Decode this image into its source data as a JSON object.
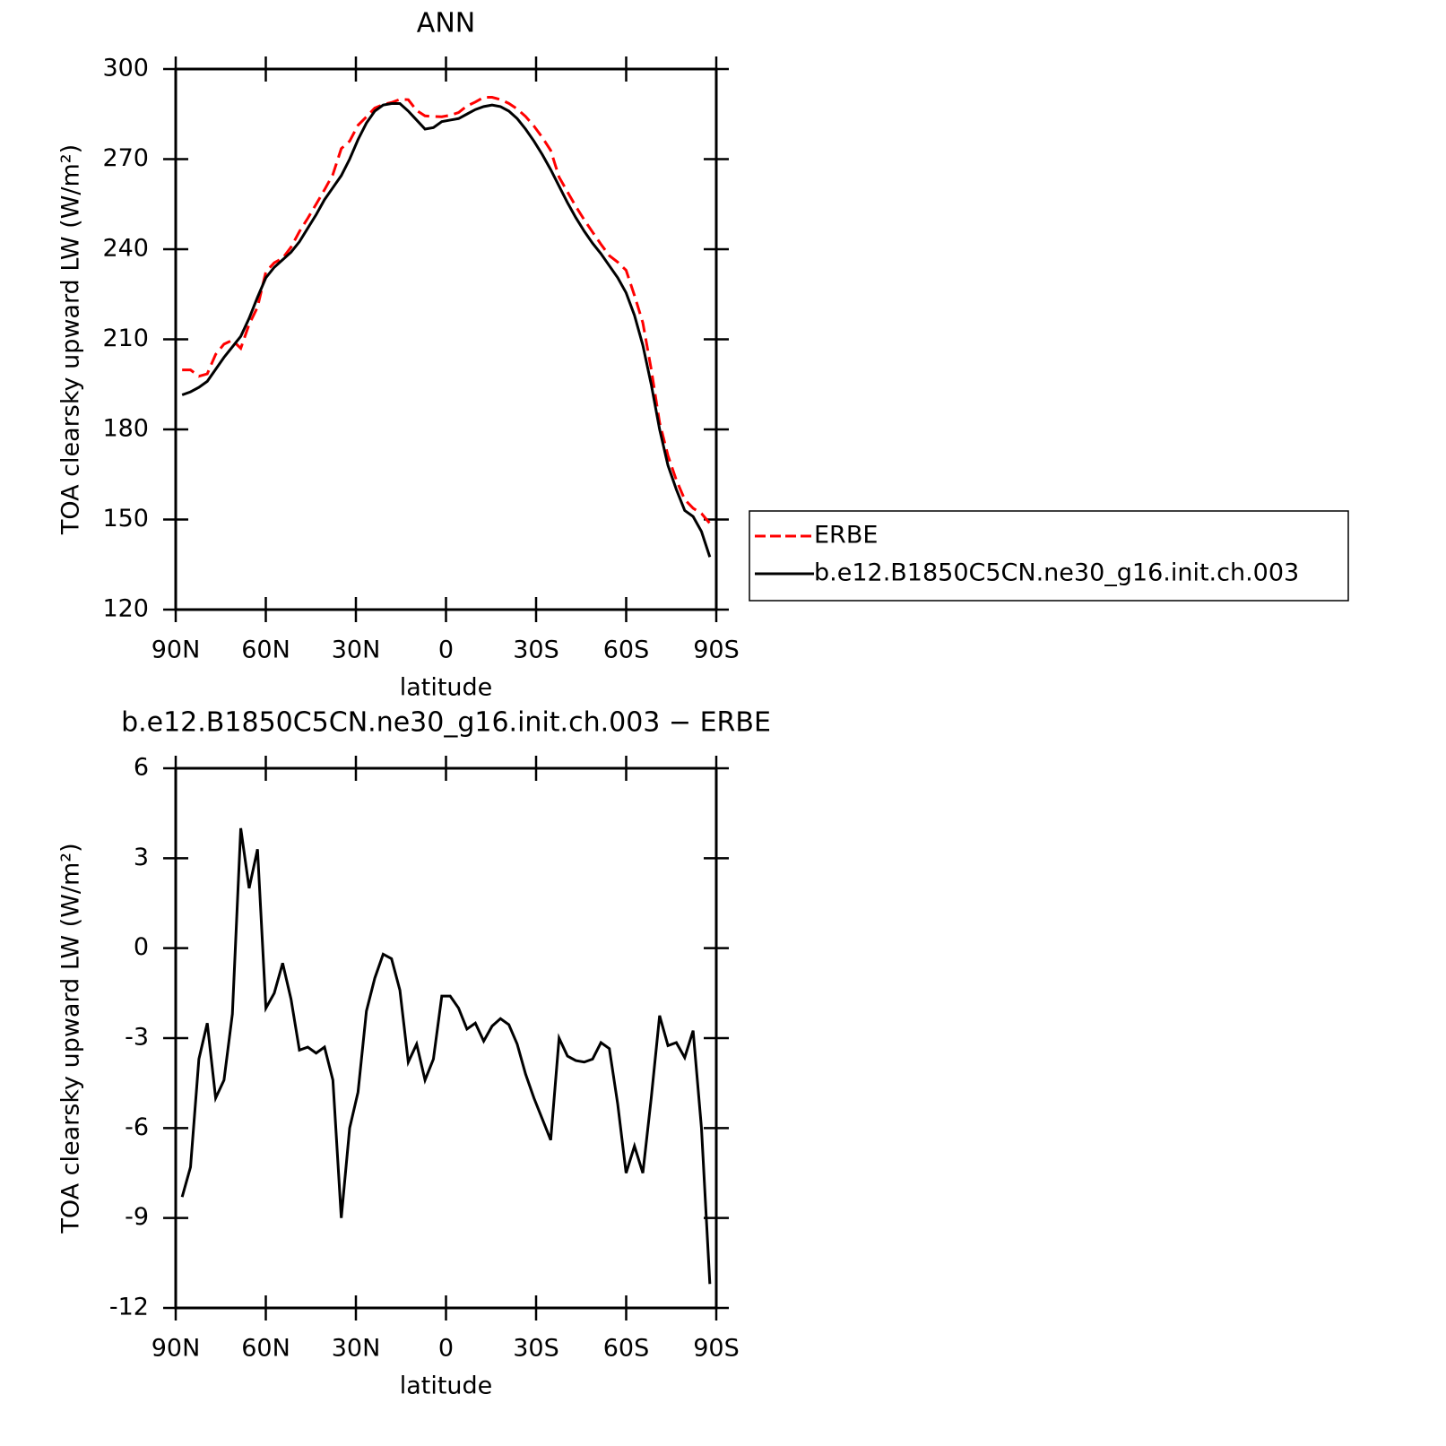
{
  "chart_data": [
    {
      "type": "line",
      "title": "ANN",
      "x_label": "latitude",
      "y_label": "TOA clearsky upward LW (W/m²)",
      "x": [
        87.86,
        85.07,
        82.28,
        79.49,
        76.7,
        73.92,
        71.13,
        68.34,
        65.55,
        62.76,
        59.97,
        57.18,
        54.39,
        51.6,
        48.81,
        46.03,
        43.24,
        40.45,
        37.66,
        34.87,
        32.08,
        29.29,
        26.5,
        23.71,
        20.92,
        18.14,
        15.35,
        12.56,
        9.77,
        6.98,
        4.19,
        1.4,
        -1.4,
        -4.19,
        -6.98,
        -9.77,
        -12.56,
        -15.35,
        -18.14,
        -20.92,
        -23.71,
        -26.5,
        -29.29,
        -32.08,
        -34.87,
        -37.66,
        -40.45,
        -43.24,
        -46.03,
        -48.81,
        -51.6,
        -54.39,
        -57.18,
        -59.97,
        -62.76,
        -65.55,
        -68.34,
        -71.13,
        -73.92,
        -76.7,
        -79.49,
        -82.28,
        -85.07,
        -87.86
      ],
      "series": [
        {
          "name": "ERBE",
          "color": "#ff0000",
          "line_style": "dashed",
          "values": [
            199.8,
            199.8,
            197.7,
            198.5,
            205,
            208.4,
            209.7,
            207,
            215,
            220.7,
            232.5,
            235.5,
            237,
            240.7,
            245.9,
            250.3,
            255,
            259.8,
            264.9,
            273.5,
            276,
            281.3,
            284.1,
            287,
            288.2,
            288.85,
            289.9,
            289.8,
            286.2,
            284.4,
            284.2,
            284.1,
            284.6,
            285.5,
            287.7,
            289,
            290.6,
            290.6,
            289.85,
            288.55,
            286.7,
            284.2,
            281,
            277.2,
            272.9,
            264,
            259.1,
            254.25,
            249.8,
            245.7,
            241.65,
            237.85,
            235.7,
            233,
            224.6,
            215.5,
            200,
            182.25,
            171.25,
            163.15,
            156.65,
            153.75,
            152,
            148.7
          ]
        },
        {
          "name": "b.e12.B1850C5CN.ne30_g16.init.ch.003",
          "color": "#000000",
          "line_style": "solid",
          "values": [
            191.5,
            192.5,
            194,
            196,
            200,
            204,
            207.5,
            211,
            217,
            224,
            230.5,
            234,
            236.5,
            239,
            242.5,
            247,
            251.5,
            256.5,
            260.5,
            264.5,
            270,
            276.5,
            282,
            286,
            288,
            288.5,
            288.5,
            286,
            283,
            280,
            280.5,
            282.5,
            283,
            283.5,
            285,
            286.5,
            287.5,
            288,
            287.5,
            286,
            283.5,
            280,
            276,
            271.5,
            266.5,
            261,
            255.5,
            250.5,
            246,
            242,
            238.5,
            234.5,
            230.5,
            225.5,
            218,
            208,
            195,
            180,
            168,
            160,
            153,
            151,
            146,
            137.5
          ]
        }
      ],
      "xlim": [
        90,
        -90
      ],
      "xticks": [
        {
          "value": 90,
          "label": "90N"
        },
        {
          "value": 60,
          "label": "60N"
        },
        {
          "value": 30,
          "label": "30N"
        },
        0,
        {
          "value": -30,
          "label": "30S"
        },
        {
          "value": -60,
          "label": "60S"
        },
        {
          "value": -90,
          "label": "90S"
        }
      ],
      "ylim": [
        120,
        300
      ],
      "yticks": [
        120,
        150,
        180,
        210,
        240,
        270,
        300
      ],
      "legend_position": "right"
    },
    {
      "type": "line",
      "title": "b.e12.B1850C5CN.ne30_g16.init.ch.003 − ERBE",
      "x_label": "latitude",
      "y_label": "TOA clearsky upward LW (W/m²)",
      "x": [
        87.86,
        85.07,
        82.28,
        79.49,
        76.7,
        73.92,
        71.13,
        68.34,
        65.55,
        62.76,
        59.97,
        57.18,
        54.39,
        51.6,
        48.81,
        46.03,
        43.24,
        40.45,
        37.66,
        34.87,
        32.08,
        29.29,
        26.5,
        23.71,
        20.92,
        18.14,
        15.35,
        12.56,
        9.77,
        6.98,
        4.19,
        1.4,
        -1.4,
        -4.19,
        -6.98,
        -9.77,
        -12.56,
        -15.35,
        -18.14,
        -20.92,
        -23.71,
        -26.5,
        -29.29,
        -32.08,
        -34.87,
        -37.66,
        -40.45,
        -43.24,
        -46.03,
        -48.81,
        -51.6,
        -54.39,
        -57.18,
        -59.97,
        -62.76,
        -65.55,
        -68.34,
        -71.13,
        -73.92,
        -76.7,
        -79.49,
        -82.28,
        -85.07,
        -87.86
      ],
      "values": [
        -8.3,
        -7.3,
        -3.7,
        -2.5,
        -5.0,
        -4.4,
        -2.2,
        4.0,
        2.0,
        3.3,
        -2.0,
        -1.5,
        -0.5,
        -1.7,
        -3.4,
        -3.3,
        -3.5,
        -3.3,
        -4.4,
        -9.0,
        -6.0,
        -4.8,
        -2.1,
        -1.0,
        -0.2,
        -0.35,
        -1.4,
        -3.8,
        -3.2,
        -4.4,
        -3.7,
        -1.6,
        -1.6,
        -2.0,
        -2.7,
        -2.5,
        -3.1,
        -2.6,
        -2.35,
        -2.55,
        -3.2,
        -4.2,
        -5.0,
        -5.7,
        -6.4,
        -3.0,
        -3.6,
        -3.75,
        -3.8,
        -3.7,
        -3.15,
        -3.35,
        -5.2,
        -7.5,
        -6.6,
        -7.5,
        -5.0,
        -2.25,
        -3.25,
        -3.15,
        -3.65,
        -2.75,
        -6.0,
        -11.2
      ],
      "color": "#000000",
      "line_style": "solid",
      "xlim": [
        90,
        -90
      ],
      "xticks": [
        {
          "value": 90,
          "label": "90N"
        },
        {
          "value": 60,
          "label": "60N"
        },
        {
          "value": 30,
          "label": "30N"
        },
        0,
        {
          "value": -30,
          "label": "30S"
        },
        {
          "value": -60,
          "label": "60S"
        },
        {
          "value": -90,
          "label": "90S"
        }
      ],
      "ylim": [
        -12,
        6
      ],
      "yticks": [
        -12,
        -9,
        -6,
        -3,
        0,
        3,
        6
      ]
    }
  ]
}
